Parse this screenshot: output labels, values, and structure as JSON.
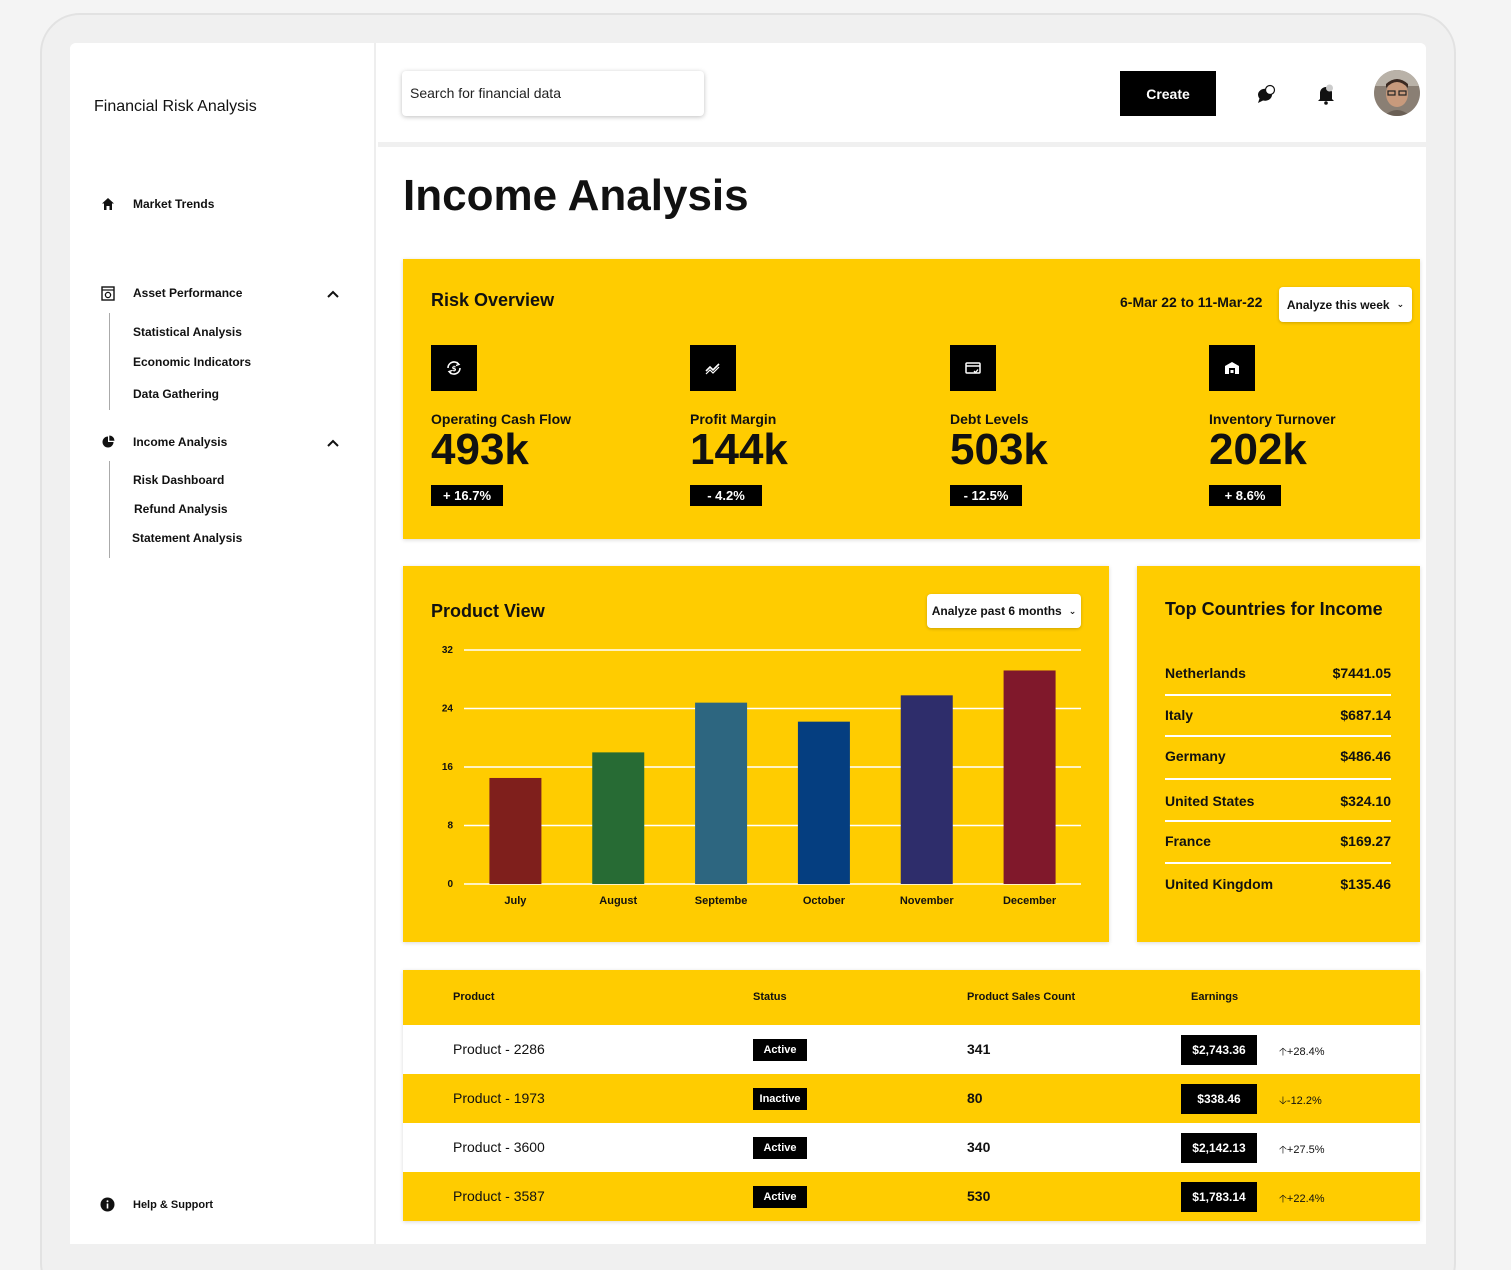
{
  "sidebar": {
    "brand": "Financial Risk Analysis",
    "market_trends": "Market Trends",
    "asset_performance": {
      "label": "Asset Performance",
      "items": [
        "Statistical Analysis",
        "Economic Indicators",
        "Data Gathering"
      ]
    },
    "income_analysis": {
      "label": "Income Analysis",
      "items": [
        "Risk Dashboard",
        "Refund Analysis",
        "Statement Analysis"
      ]
    },
    "help": "Help & Support"
  },
  "topbar": {
    "search_value": "Search for financial data",
    "create_label": "Create"
  },
  "page": {
    "title": "Income Analysis"
  },
  "risk": {
    "title": "Risk Overview",
    "date_range": "6-Mar 22 to 11-Mar-22",
    "dropdown": "Analyze this week",
    "metrics": [
      {
        "label": "Operating Cash Flow",
        "value": "493k",
        "change": "+ 16.7%",
        "icon": "cash-cycle-icon"
      },
      {
        "label": "Profit Margin",
        "value": "144k",
        "change": "- 4.2%",
        "icon": "trend-chart-icon"
      },
      {
        "label": "Debt Levels",
        "value": "503k",
        "change": "- 12.5%",
        "icon": "card-check-icon"
      },
      {
        "label": "Inventory Turnover",
        "value": "202k",
        "change": "+ 8.6%",
        "icon": "warehouse-icon"
      }
    ]
  },
  "product_view": {
    "title": "Product View",
    "dropdown": "Analyze past 6 months"
  },
  "chart_data": {
    "type": "bar",
    "categories": [
      "July",
      "August",
      "Septembe",
      "October",
      "November",
      "December"
    ],
    "values": [
      14.5,
      18,
      24.8,
      22.2,
      25.8,
      29.2
    ],
    "colors": [
      "#7f1f1c",
      "#276b34",
      "#2d6680",
      "#053e80",
      "#2e2d6b",
      "#80182b"
    ],
    "yticks": [
      0,
      8,
      16,
      24,
      32
    ],
    "ylim": [
      0,
      32
    ],
    "grid": true
  },
  "countries": {
    "title": "Top Countries for Income",
    "rows": [
      {
        "name": "Netherlands",
        "value": "$7441.05"
      },
      {
        "name": "Italy",
        "value": "$687.14"
      },
      {
        "name": "Germany",
        "value": "$486.46"
      },
      {
        "name": "United States",
        "value": "$324.10"
      },
      {
        "name": "France",
        "value": "$169.27"
      },
      {
        "name": "United Kingdom",
        "value": "$135.46"
      }
    ]
  },
  "table": {
    "headers": {
      "product": "Product",
      "status": "Status",
      "count": "Product Sales Count",
      "earnings": "Earnings"
    },
    "rows": [
      {
        "product": "Product - 2286",
        "status": "Active",
        "count": "341",
        "earnings": "$2,743.36",
        "trend": "+28.4%",
        "up": true
      },
      {
        "product": "Product - 1973",
        "status": "Inactive",
        "count": "80",
        "earnings": "$338.46",
        "trend": "-12.2%",
        "up": false
      },
      {
        "product": "Product - 3600",
        "status": "Active",
        "count": "340",
        "earnings": "$2,142.13",
        "trend": "+27.5%",
        "up": true
      },
      {
        "product": "Product - 3587",
        "status": "Active",
        "count": "530",
        "earnings": "$1,783.14",
        "trend": "+22.4%",
        "up": true
      }
    ]
  },
  "colors": {
    "accent": "#ffcc00",
    "dark": "#000000"
  }
}
